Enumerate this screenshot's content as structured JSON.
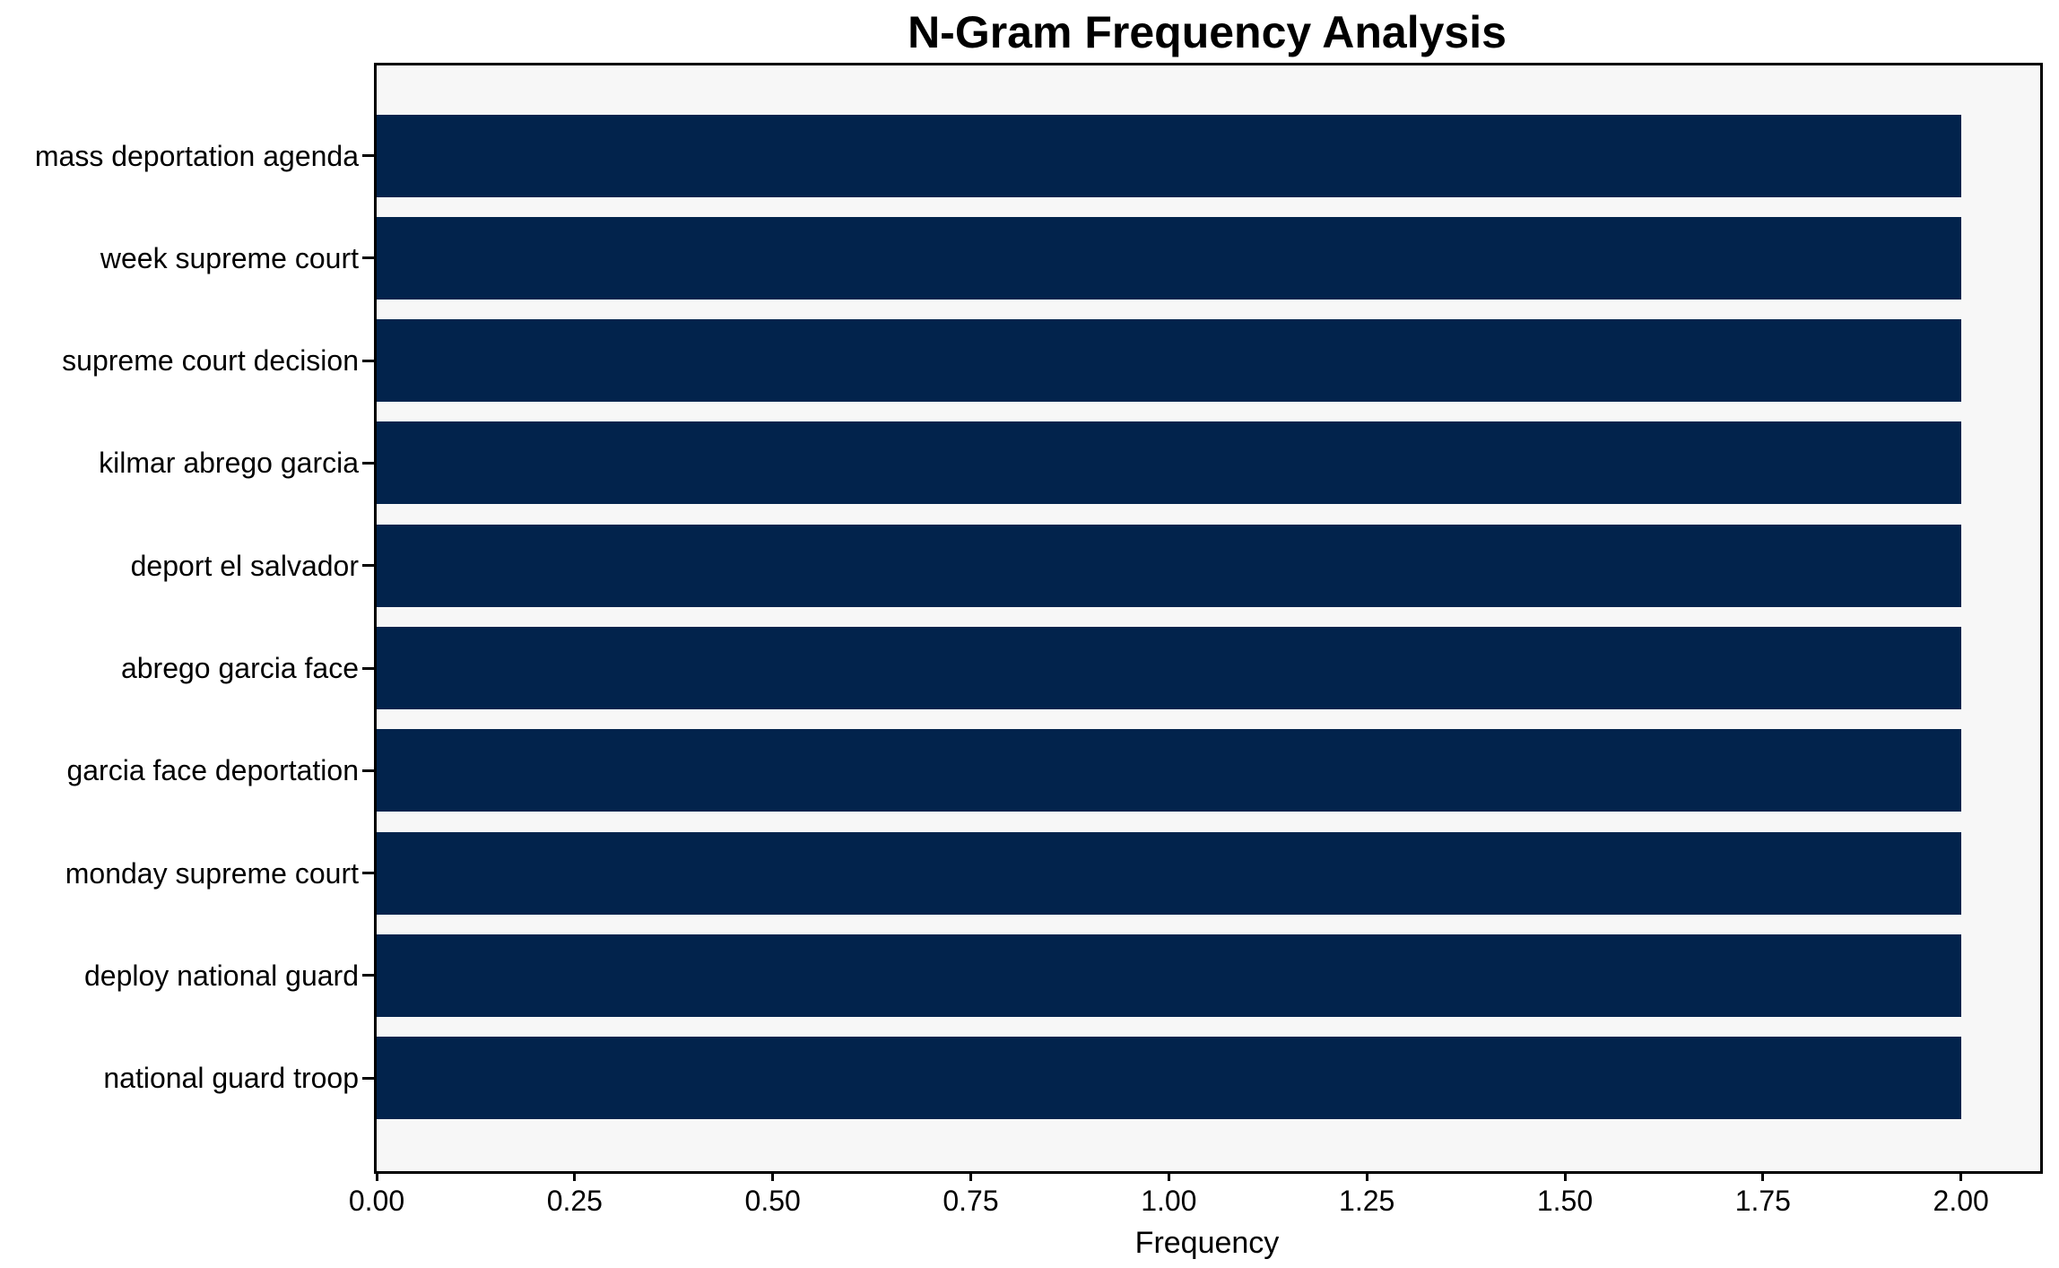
{
  "page": {
    "background": "#ffffff"
  },
  "chart_data": {
    "type": "bar",
    "orientation": "horizontal",
    "title": "N-Gram Frequency Analysis",
    "xlabel": "Frequency",
    "ylabel": "",
    "categories": [
      "mass deportation agenda",
      "week supreme court",
      "supreme court decision",
      "kilmar abrego garcia",
      "deport el salvador",
      "abrego garcia face",
      "garcia face deportation",
      "monday supreme court",
      "deploy national guard",
      "national guard troop"
    ],
    "values": [
      2,
      2,
      2,
      2,
      2,
      2,
      2,
      2,
      2,
      2
    ],
    "xlim": [
      0,
      2.1
    ],
    "xtick_values": [
      0,
      0.25,
      0.5,
      0.75,
      1.0,
      1.25,
      1.5,
      1.75,
      2.0
    ],
    "xtick_labels": [
      "0.00",
      "0.25",
      "0.50",
      "0.75",
      "1.00",
      "1.25",
      "1.50",
      "1.75",
      "2.00"
    ],
    "grid": false,
    "legend_position": "none",
    "bar_color": "#02234c",
    "plot_background": "#f7f7f7",
    "frame_color": "#000000",
    "text_color": "#000000"
  }
}
